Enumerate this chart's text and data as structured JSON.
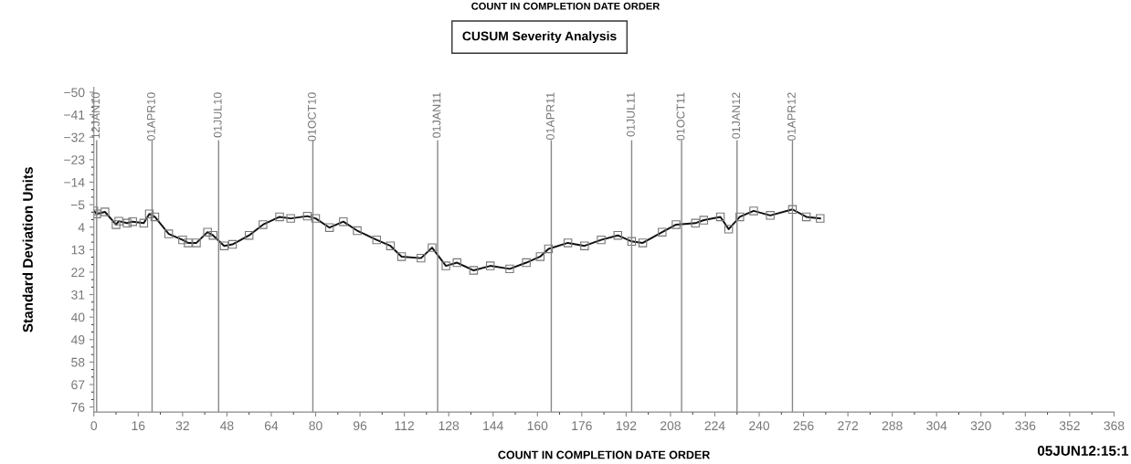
{
  "chart_data": {
    "type": "line",
    "title": "COUNT IN COMPLETION DATE ORDER",
    "subtitle": "CUSUM Severity Analysis",
    "xlabel": "COUNT IN COMPLETION DATE ORDER",
    "ylabel": "Standard Deviation Units",
    "annotations": [
      "05JUN12:15:1"
    ],
    "series": [
      {
        "color": "#111111",
        "x": [
          0,
          1,
          4,
          8,
          9,
          12,
          14,
          18,
          20,
          22,
          27,
          32,
          34,
          37,
          41,
          43,
          47,
          50,
          56,
          61,
          67,
          71,
          77,
          80,
          85,
          90,
          95,
          102,
          107,
          111,
          118,
          122,
          127,
          131,
          137,
          143,
          150,
          156,
          161,
          164,
          171,
          177,
          183,
          189,
          194,
          198,
          205,
          210,
          217,
          220,
          226,
          229,
          233,
          238,
          244,
          252,
          257,
          262
        ],
        "values": [
          -2.5,
          -1.3,
          -2.1,
          3.0,
          1.6,
          2.4,
          1.8,
          2.4,
          -1.3,
          -0.1,
          6.7,
          9.1,
          10.3,
          10.3,
          6.0,
          7.3,
          11.5,
          10.9,
          7.3,
          3.0,
          -0.1,
          0.5,
          -0.4,
          0.5,
          4.2,
          1.8,
          5.4,
          9.1,
          11.5,
          15.8,
          16.4,
          12.2,
          19.5,
          18.2,
          21.3,
          19.5,
          20.7,
          18.2,
          15.8,
          12.7,
          10.3,
          11.5,
          9.1,
          7.3,
          9.7,
          10.3,
          6.0,
          3.0,
          2.4,
          1.2,
          -0.1,
          4.8,
          -0.1,
          -2.5,
          -0.7,
          -3.1,
          -0.1,
          0.5
        ]
      }
    ],
    "marker": "square",
    "line_style": "solid",
    "grid": false,
    "legend": false,
    "xlim": [
      0,
      368
    ],
    "xticks": [
      0,
      16,
      32,
      48,
      64,
      80,
      96,
      112,
      128,
      144,
      160,
      176,
      192,
      208,
      224,
      240,
      256,
      272,
      288,
      304,
      320,
      336,
      352,
      368
    ],
    "ylim": [
      78,
      -52
    ],
    "yticks": [
      {
        "value": -50,
        "label": "−50"
      },
      {
        "value": -41,
        "label": "−41"
      },
      {
        "value": -32,
        "label": "−32"
      },
      {
        "value": -23,
        "label": "−23"
      },
      {
        "value": -14,
        "label": "−14"
      },
      {
        "value": -5,
        "label": "−5"
      },
      4,
      13,
      22,
      31,
      40,
      49,
      58,
      67,
      76
    ],
    "ref_lines": [
      {
        "axis": "x",
        "value": 1,
        "label": "12JAN10",
        "color": "#888888"
      },
      {
        "axis": "x",
        "value": 21,
        "label": "01APR10",
        "color": "#888888"
      },
      {
        "axis": "x",
        "value": 45,
        "label": "01JUL10",
        "color": "#888888"
      },
      {
        "axis": "x",
        "value": 79,
        "label": "01OCT10",
        "color": "#888888"
      },
      {
        "axis": "x",
        "value": 124,
        "label": "01JAN11",
        "color": "#888888"
      },
      {
        "axis": "x",
        "value": 165,
        "label": "01APR11",
        "color": "#888888"
      },
      {
        "axis": "x",
        "value": 194,
        "label": "01JUL11",
        "color": "#888888"
      },
      {
        "axis": "x",
        "value": 212,
        "label": "01OCT11",
        "color": "#888888"
      },
      {
        "axis": "x",
        "value": 232,
        "label": "01JAN12",
        "color": "#888888"
      },
      {
        "axis": "x",
        "value": 252,
        "label": "01APR12",
        "color": "#888888"
      }
    ]
  }
}
